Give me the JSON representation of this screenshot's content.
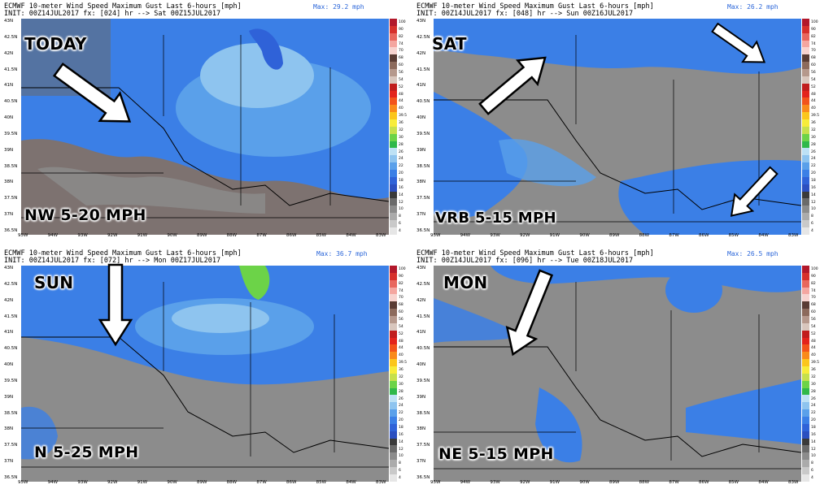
{
  "colorbar": {
    "labels": [
      "100",
      "90",
      "82",
      "74",
      "70",
      "68",
      "60",
      "56",
      "54",
      "52",
      "48",
      "44",
      "40",
      "39.5",
      "36",
      "32",
      "30",
      "28",
      "26",
      "24",
      "22",
      "20",
      "18",
      "16",
      "14",
      "12",
      "10",
      "8",
      "6",
      "4"
    ],
    "colors": [
      "#b2182b",
      "#d6302c",
      "#e8675e",
      "#f4a6a0",
      "#f7d3cf",
      "#5a3c34",
      "#8c6a5c",
      "#b5988c",
      "#d8c6bd",
      "#c11d1d",
      "#e3231c",
      "#f2531b",
      "#f98a1a",
      "#fbc61c",
      "#f7ec3a",
      "#c6e04c",
      "#6cd348",
      "#2fb84a",
      "#bde1f5",
      "#8ec4ef",
      "#5aa0ea",
      "#3b7fe6",
      "#2f62d8",
      "#2b4fc0",
      "#3a3a3a",
      "#6a6a6a",
      "#8c8c8c",
      "#ababab",
      "#c9c9c9",
      "#e6e6e6"
    ]
  },
  "lat_labels": [
    "43N",
    "42.5N",
    "42N",
    "41.5N",
    "41N",
    "40.5N",
    "40N",
    "39.5N",
    "39N",
    "38.5N",
    "38N",
    "37.5N",
    "37N",
    "36.5N"
  ],
  "lon_labels": [
    "95W",
    "94W",
    "93W",
    "92W",
    "91W",
    "90W",
    "89W",
    "88W",
    "87W",
    "86W",
    "85W",
    "84W",
    "83W"
  ],
  "panels": [
    {
      "header1": "ECMWF 10-meter Wind Speed Maximum Gust Last 6-hours [mph]",
      "header2": "INIT: 00Z14JUL2017 fx: [024] hr --> Sat 00Z15JUL2017",
      "max": "Max: 29.2 mph",
      "day": "TODAY",
      "wind": "NW 5-20 MPH",
      "arrow_icon": "arrow-southeast-icon"
    },
    {
      "header1": "ECMWF 10-meter Wind Speed Maximum Gust Last 6-hours [mph]",
      "header2": "INIT: 00Z14JUL2017 fx: [048] hr --> Sun 00Z16JUL2017",
      "max": "Max: 26.2 mph",
      "day": "SAT",
      "wind": "VRB 5-15 MPH",
      "arrow_icon": "arrow-northeast-icon"
    },
    {
      "header1": "ECMWF 10-meter Wind Speed Maximum Gust Last 6-hours [mph]",
      "header2": "INIT: 00Z14JUL2017 fx: [072] hr --> Mon 00Z17JUL2017",
      "max": "Max: 36.7 mph",
      "day": "SUN",
      "wind": "N 5-25 MPH",
      "arrow_icon": "arrow-south-icon"
    },
    {
      "header1": "ECMWF 10-meter Wind Speed Maximum Gust Last 6-hours [mph]",
      "header2": "INIT: 00Z14JUL2017 fx: [096] hr --> Tue 00Z18JUL2017",
      "max": "Max: 26.5 mph",
      "day": "MON",
      "wind": "NE 5-15 MPH",
      "arrow_icon": "arrow-southwest-icon"
    }
  ]
}
